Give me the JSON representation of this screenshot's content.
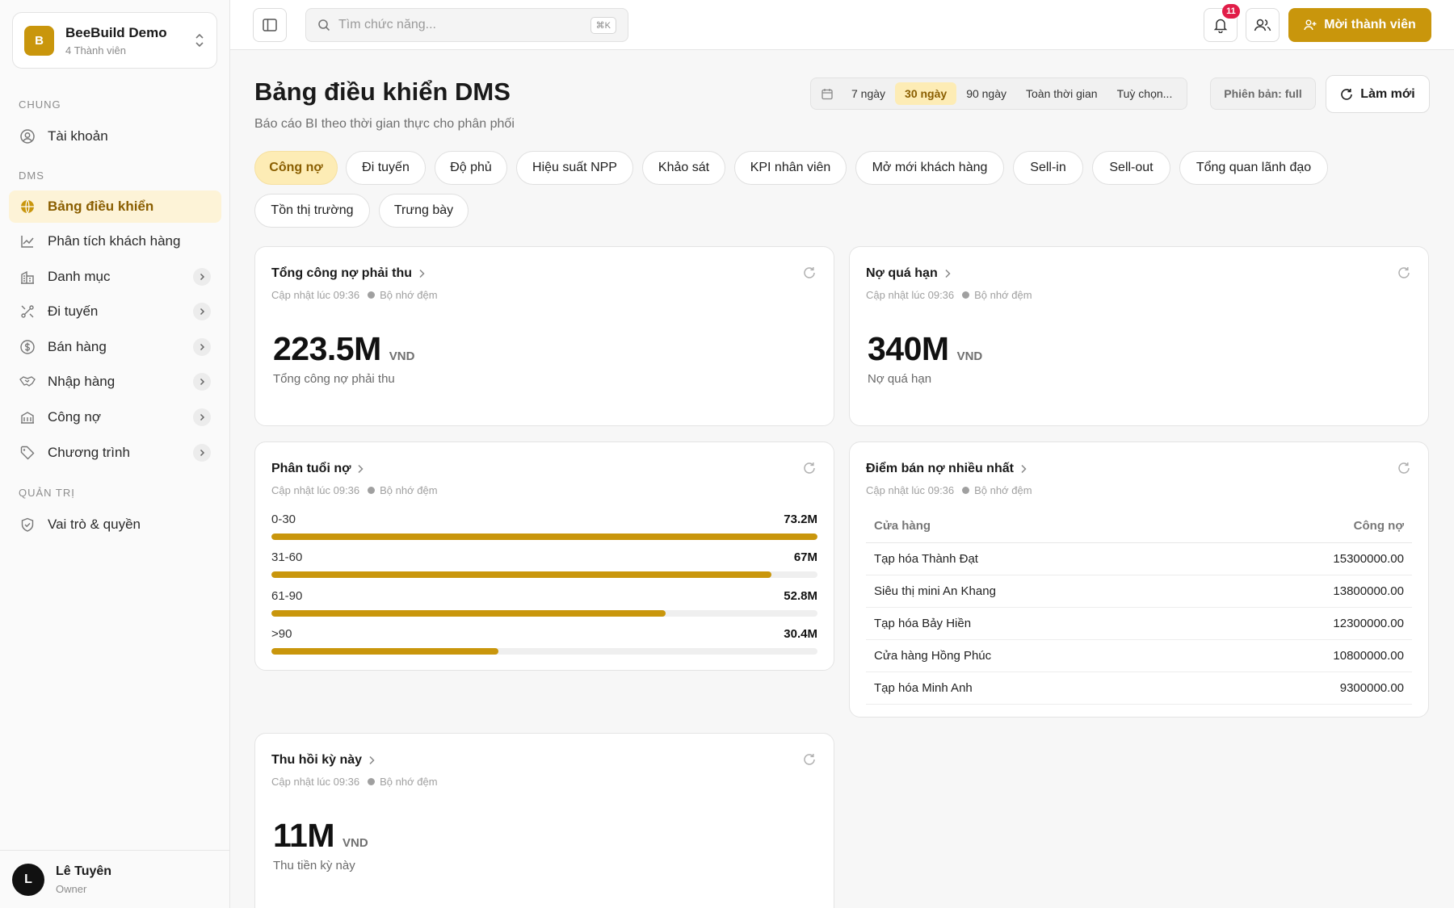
{
  "workspace": {
    "initial": "B",
    "name": "BeeBuild Demo",
    "members": "4 Thành viên"
  },
  "sidebar": {
    "sections": {
      "general": "CHUNG",
      "dms": "DMS",
      "admin": "QUẢN TRỊ"
    },
    "items": [
      {
        "label": "Tài khoản",
        "icon": "user-circle-icon"
      },
      {
        "label": "Bảng điều khiển",
        "icon": "globe-icon",
        "active": true
      },
      {
        "label": "Phân tích khách hàng",
        "icon": "line-chart-icon"
      },
      {
        "label": "Danh mục",
        "icon": "building-icon"
      },
      {
        "label": "Đi tuyến",
        "icon": "route-icon"
      },
      {
        "label": "Bán hàng",
        "icon": "dollar-circle-icon"
      },
      {
        "label": "Nhập hàng",
        "icon": "handshake-icon"
      },
      {
        "label": "Công nợ",
        "icon": "ledger-icon"
      },
      {
        "label": "Chương trình",
        "icon": "tag-icon"
      },
      {
        "label": "Vai trò & quyền",
        "icon": "shield-icon"
      }
    ]
  },
  "user": {
    "initial": "L",
    "name": "Lê Tuyên",
    "role": "Owner"
  },
  "topbar": {
    "search_placeholder": "Tìm chức năng...",
    "search_shortcut": "⌘K",
    "notification_count": "11",
    "invite_label": "Mời thành viên"
  },
  "header": {
    "title": "Bảng điều khiển DMS",
    "subtitle": "Báo cáo BI theo thời gian thực cho phân phối",
    "ranges": [
      "7 ngày",
      "30 ngày",
      "90 ngày",
      "Toàn thời gian",
      "Tuỳ chọn..."
    ],
    "active_range": "30 ngày",
    "version": "Phiên bản: full",
    "refresh_label": "Làm mới"
  },
  "tabs": [
    "Công nợ",
    "Đi tuyến",
    "Độ phủ",
    "Hiệu suất NPP",
    "Khảo sát",
    "KPI nhân viên",
    "Mở mới khách hàng",
    "Sell-in",
    "Sell-out",
    "Tổng quan lãnh đạo",
    "Tồn thị trường",
    "Trưng bày"
  ],
  "active_tab": "Công nợ",
  "cards": {
    "receivable": {
      "title": "Tổng công nợ phải thu",
      "updated": "Cập nhật lúc 09:36",
      "cache": "Bộ nhớ đệm",
      "value": "223.5M",
      "unit": "VND",
      "label": "Tổng công nợ phải thu"
    },
    "overdue": {
      "title": "Nợ quá hạn",
      "updated": "Cập nhật lúc 09:36",
      "cache": "Bộ nhớ đệm",
      "value": "340M",
      "unit": "VND",
      "label": "Nợ quá hạn"
    },
    "aging": {
      "title": "Phân tuổi nợ",
      "updated": "Cập nhật lúc 09:36",
      "cache": "Bộ nhớ đệm",
      "rows": [
        {
          "label": "0-30",
          "value": "73.2M",
          "amount": 73.2
        },
        {
          "label": "31-60",
          "value": "67M",
          "amount": 67
        },
        {
          "label": "61-90",
          "value": "52.8M",
          "amount": 52.8
        },
        {
          "label": ">90",
          "value": "30.4M",
          "amount": 30.4
        }
      ]
    },
    "top_debtors": {
      "title": "Điểm bán nợ nhiều nhất",
      "updated": "Cập nhật lúc 09:36",
      "cache": "Bộ nhớ đệm",
      "col_store": "Cửa hàng",
      "col_debt": "Công nợ",
      "rows": [
        {
          "store": "Tạp hóa Thành Đạt",
          "debt": "15300000.00"
        },
        {
          "store": "Siêu thị mini An Khang",
          "debt": "13800000.00"
        },
        {
          "store": "Tạp hóa Bảy Hiền",
          "debt": "12300000.00"
        },
        {
          "store": "Cửa hàng Hồng Phúc",
          "debt": "10800000.00"
        },
        {
          "store": "Tạp hóa Minh Anh",
          "debt": "9300000.00"
        }
      ]
    },
    "collection": {
      "title": "Thu hồi kỳ này",
      "updated": "Cập nhật lúc 09:36",
      "cache": "Bộ nhớ đệm",
      "value": "11M",
      "unit": "VND",
      "label": "Thu tiền kỳ này"
    }
  },
  "colors": {
    "accent": "#c9960c",
    "accent_soft": "#fdecb5",
    "badge": "#e11d48"
  }
}
